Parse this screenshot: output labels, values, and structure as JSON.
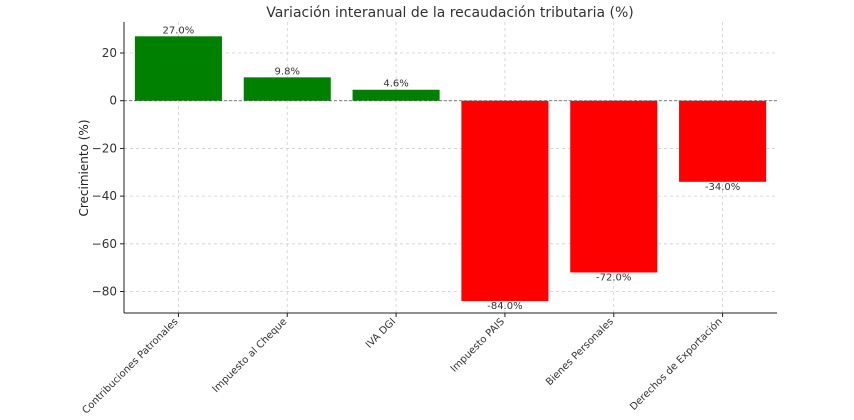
{
  "chart_data": {
    "type": "bar",
    "title": "Variación interanual de la recaudación tributaria (%)",
    "xlabel": "",
    "ylabel": "Crecimiento (%)",
    "categories": [
      "Contribuciones Patronales",
      "Impuesto al Cheque",
      "IVA DGI",
      "Impuesto PAIS",
      "Bienes Personales",
      "Derechos de Exportación"
    ],
    "values": [
      27.0,
      9.8,
      4.6,
      -84.0,
      -72.0,
      -34.0
    ],
    "value_labels": [
      "27.0%",
      "9.8%",
      "4.6%",
      "-84.0%",
      "-72.0%",
      "-34.0%"
    ],
    "ylim": [
      -89,
      33
    ],
    "yticks": [
      20,
      0,
      -20,
      -40,
      -60,
      -80
    ],
    "ytick_labels": [
      "20",
      "0",
      "−20",
      "−40",
      "−60",
      "−80"
    ],
    "grid": true,
    "colors": {
      "positive": "#008000",
      "negative": "#ff0000",
      "zero_line": "#555555",
      "grid": "#cfcfcf",
      "axis": "#222222"
    }
  }
}
